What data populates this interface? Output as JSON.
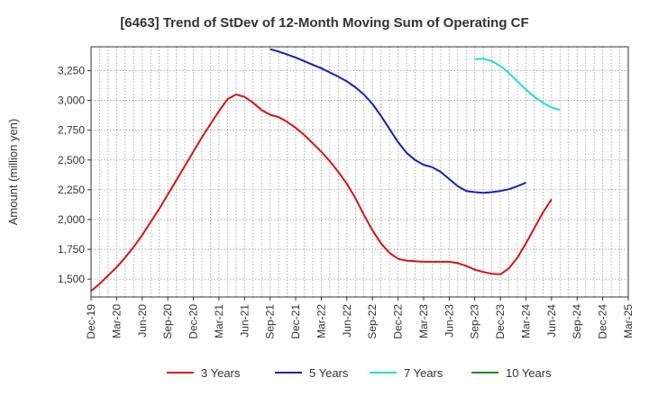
{
  "chart_data": {
    "type": "line",
    "title": "[6463]  Trend of StDev of 12-Month Moving Sum of Operating CF",
    "ylabel": "Amount (million yen)",
    "xlabel": "",
    "ylim": [
      1350,
      3450
    ],
    "y_ticks": [
      1500,
      1750,
      2000,
      2250,
      2500,
      2750,
      3000,
      3250
    ],
    "y_tick_labels": [
      "1,500",
      "1,750",
      "2,000",
      "2,250",
      "2,500",
      "2,750",
      "3,000",
      "3,250"
    ],
    "x_range": [
      "2019-12",
      "2025-03"
    ],
    "x_ticks": [
      "2019-12",
      "2020-03",
      "2020-06",
      "2020-09",
      "2020-12",
      "2021-03",
      "2021-06",
      "2021-09",
      "2021-12",
      "2022-03",
      "2022-06",
      "2022-09",
      "2022-12",
      "2023-03",
      "2023-06",
      "2023-09",
      "2023-12",
      "2024-03",
      "2024-06",
      "2024-09",
      "2024-12",
      "2025-03"
    ],
    "x_tick_labels": [
      "Dec-19",
      "Mar-20",
      "Jun-20",
      "Sep-20",
      "Dec-20",
      "Mar-21",
      "Jun-21",
      "Sep-21",
      "Dec-21",
      "Mar-22",
      "Jun-22",
      "Sep-22",
      "Dec-22",
      "Mar-23",
      "Jun-23",
      "Sep-23",
      "Dec-23",
      "Mar-24",
      "Jun-24",
      "Sep-24",
      "Dec-24",
      "Mar-25"
    ],
    "grid": true,
    "legend_position": "bottom",
    "series": [
      {
        "name": "3 Years",
        "color": "#dd1111",
        "points": [
          [
            "2019-12",
            1400
          ],
          [
            "2020-01",
            1460
          ],
          [
            "2020-02",
            1530
          ],
          [
            "2020-03",
            1600
          ],
          [
            "2020-04",
            1680
          ],
          [
            "2020-05",
            1770
          ],
          [
            "2020-06",
            1870
          ],
          [
            "2020-07",
            1980
          ],
          [
            "2020-08",
            2090
          ],
          [
            "2020-09",
            2210
          ],
          [
            "2020-10",
            2330
          ],
          [
            "2020-11",
            2450
          ],
          [
            "2020-12",
            2570
          ],
          [
            "2021-01",
            2690
          ],
          [
            "2021-02",
            2800
          ],
          [
            "2021-03",
            2910
          ],
          [
            "2021-04",
            3010
          ],
          [
            "2021-05",
            3050
          ],
          [
            "2021-06",
            3030
          ],
          [
            "2021-07",
            2980
          ],
          [
            "2021-08",
            2920
          ],
          [
            "2021-09",
            2880
          ],
          [
            "2021-10",
            2860
          ],
          [
            "2021-11",
            2820
          ],
          [
            "2021-12",
            2770
          ],
          [
            "2022-01",
            2710
          ],
          [
            "2022-02",
            2640
          ],
          [
            "2022-03",
            2570
          ],
          [
            "2022-04",
            2490
          ],
          [
            "2022-05",
            2400
          ],
          [
            "2022-06",
            2300
          ],
          [
            "2022-07",
            2180
          ],
          [
            "2022-08",
            2040
          ],
          [
            "2022-09",
            1910
          ],
          [
            "2022-10",
            1800
          ],
          [
            "2022-11",
            1720
          ],
          [
            "2022-12",
            1670
          ],
          [
            "2023-01",
            1655
          ],
          [
            "2023-02",
            1650
          ],
          [
            "2023-03",
            1645
          ],
          [
            "2023-04",
            1645
          ],
          [
            "2023-05",
            1645
          ],
          [
            "2023-06",
            1645
          ],
          [
            "2023-07",
            1635
          ],
          [
            "2023-08",
            1610
          ],
          [
            "2023-09",
            1580
          ],
          [
            "2023-10",
            1560
          ],
          [
            "2023-11",
            1545
          ],
          [
            "2023-12",
            1540
          ],
          [
            "2024-01",
            1590
          ],
          [
            "2024-02",
            1680
          ],
          [
            "2024-03",
            1800
          ],
          [
            "2024-04",
            1930
          ],
          [
            "2024-05",
            2060
          ],
          [
            "2024-06",
            2170
          ]
        ]
      },
      {
        "name": "5 Years",
        "color": "#1122bb",
        "points": [
          [
            "2021-09",
            3430
          ],
          [
            "2021-10",
            3410
          ],
          [
            "2021-11",
            3385
          ],
          [
            "2021-12",
            3360
          ],
          [
            "2022-01",
            3330
          ],
          [
            "2022-02",
            3300
          ],
          [
            "2022-03",
            3270
          ],
          [
            "2022-04",
            3235
          ],
          [
            "2022-05",
            3200
          ],
          [
            "2022-06",
            3160
          ],
          [
            "2022-07",
            3110
          ],
          [
            "2022-08",
            3050
          ],
          [
            "2022-09",
            2970
          ],
          [
            "2022-10",
            2870
          ],
          [
            "2022-11",
            2760
          ],
          [
            "2022-12",
            2650
          ],
          [
            "2023-01",
            2560
          ],
          [
            "2023-02",
            2500
          ],
          [
            "2023-03",
            2460
          ],
          [
            "2023-04",
            2440
          ],
          [
            "2023-05",
            2400
          ],
          [
            "2023-06",
            2340
          ],
          [
            "2023-07",
            2280
          ],
          [
            "2023-08",
            2240
          ],
          [
            "2023-09",
            2230
          ],
          [
            "2023-10",
            2225
          ],
          [
            "2023-11",
            2230
          ],
          [
            "2023-12",
            2240
          ],
          [
            "2024-01",
            2255
          ],
          [
            "2024-02",
            2280
          ],
          [
            "2024-03",
            2310
          ]
        ]
      },
      {
        "name": "7 Years",
        "color": "#22dddd",
        "points": [
          [
            "2023-09",
            3345
          ],
          [
            "2023-10",
            3350
          ],
          [
            "2023-11",
            3330
          ],
          [
            "2023-12",
            3290
          ],
          [
            "2024-01",
            3230
          ],
          [
            "2024-02",
            3160
          ],
          [
            "2024-03",
            3090
          ],
          [
            "2024-04",
            3030
          ],
          [
            "2024-05",
            2980
          ],
          [
            "2024-06",
            2940
          ],
          [
            "2024-07",
            2920
          ]
        ]
      },
      {
        "name": "10 Years",
        "color": "#228822",
        "points": []
      }
    ]
  }
}
